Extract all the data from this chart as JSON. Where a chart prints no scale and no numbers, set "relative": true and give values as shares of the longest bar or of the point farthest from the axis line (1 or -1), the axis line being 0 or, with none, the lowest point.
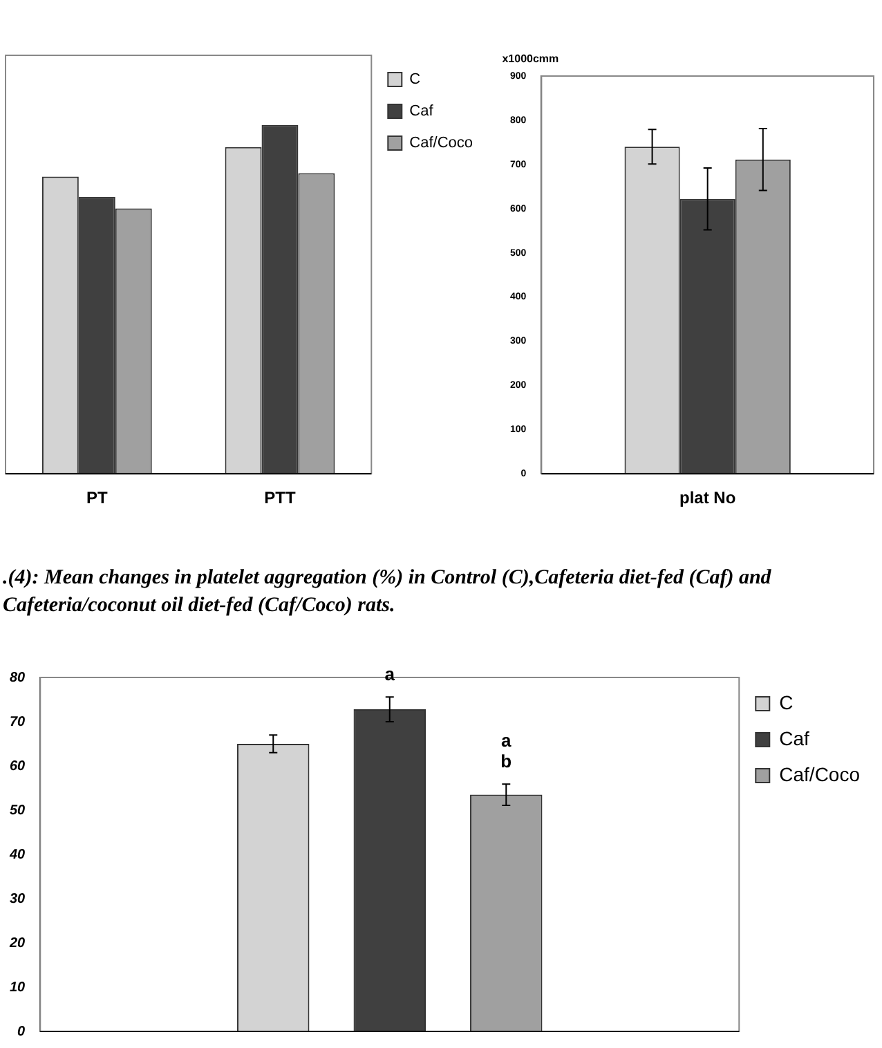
{
  "chart_data": [
    {
      "type": "bar",
      "relative": true,
      "categories": [
        "PT",
        "PTT"
      ],
      "legend": "top right",
      "grid": false,
      "tick_labels": "x",
      "series": [
        {
          "name": "C",
          "color": "#d3d3d3",
          "values": [
            0.852,
            0.937
          ]
        },
        {
          "name": "Caf",
          "color": "#404040",
          "values": [
            0.794,
            1
          ]
        },
        {
          "name": "Caf/Coco",
          "color": "#a0a0a0",
          "values": [
            0.761,
            0.862
          ]
        }
      ]
    },
    {
      "type": "bar",
      "categories": [
        "plat No"
      ],
      "ylabel": "x1000cmm",
      "ylim": [
        0,
        900
      ],
      "yticks": [
        0,
        100,
        200,
        300,
        400,
        500,
        600,
        700,
        800,
        900
      ],
      "grid": false,
      "legend": false,
      "series": [
        {
          "color": "#d3d3d3",
          "values": [
            740
          ],
          "errors": [
            39
          ]
        },
        {
          "color": "#404040",
          "values": [
            622
          ],
          "errors": [
            70
          ]
        },
        {
          "color": "#a0a0a0",
          "values": [
            711
          ],
          "errors": [
            70
          ]
        }
      ]
    },
    {
      "type": "bar",
      "title": ".(4): Mean changes in platelet aggregation (%)  in Control (C),Cafeteria diet-fed (Caf) and Cafeteria/coconut oil diet-fed (Caf/Coco) rats.",
      "categories": [
        null
      ],
      "ylim": [
        0,
        80
      ],
      "yticks": [
        0,
        10,
        20,
        30,
        40,
        50,
        60,
        70,
        80
      ],
      "grid": false,
      "legend": "top right",
      "tick_labels": "y",
      "annotations": [
        "a",
        "a",
        "b"
      ],
      "series": [
        {
          "name": "C",
          "color": "#d3d3d3",
          "values": [
            65
          ],
          "errors": [
            2
          ]
        },
        {
          "name": "Caf",
          "color": "#404040",
          "values": [
            72.8
          ],
          "errors": [
            2.8
          ]
        },
        {
          "name": "Caf/Coco",
          "color": "#a0a0a0",
          "values": [
            53.5
          ],
          "errors": [
            2.4
          ]
        }
      ]
    }
  ]
}
